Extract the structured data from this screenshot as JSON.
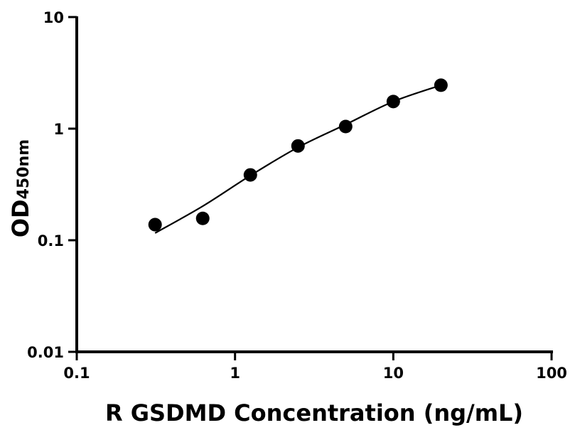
{
  "chart_data": {
    "type": "scatter",
    "title": "",
    "xlabel": "R GSDMD Concentration (ng/mL)",
    "ylabel": "OD",
    "ylabel_subscript": "450nm",
    "xscale": "log",
    "yscale": "log",
    "xlim": [
      0.1,
      100
    ],
    "ylim": [
      0.01,
      10
    ],
    "grid": false,
    "x_ticks": [
      "0.1",
      "1",
      "10",
      "100"
    ],
    "y_ticks": [
      "0.01",
      "0.1",
      "1",
      "10"
    ],
    "series": [
      {
        "marker": "filled-circle",
        "color": "#000000",
        "x": [
          0.3125,
          0.625,
          1.25,
          2.5,
          5,
          10,
          20
        ],
        "y": [
          0.138,
          0.157,
          0.385,
          0.7,
          1.045,
          1.75,
          2.45
        ]
      }
    ],
    "fit_curve": {
      "color": "#000000",
      "x": [
        0.3125,
        0.625,
        1.25,
        2.5,
        5,
        10,
        20
      ],
      "y": [
        0.116,
        0.202,
        0.38,
        0.68,
        1.09,
        1.75,
        2.45
      ]
    }
  }
}
